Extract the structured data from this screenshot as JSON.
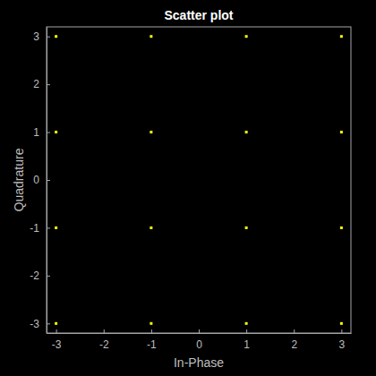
{
  "chart_data": {
    "type": "scatter",
    "title": "Scatter plot",
    "x_label": "In-Phase",
    "y_label": "Quadrature",
    "x": [
      -3,
      -1,
      1,
      3,
      -3,
      -1,
      1,
      3,
      -3,
      -1,
      1,
      3,
      -3,
      -1,
      1,
      3
    ],
    "values": [
      3,
      3,
      3,
      3,
      1,
      1,
      1,
      1,
      -1,
      -1,
      -1,
      -1,
      -3,
      -3,
      -3,
      -3
    ],
    "color": "#ffff00",
    "marker": "square",
    "xlim": [
      -3.2,
      3.2
    ],
    "ylim": [
      -3.2,
      3.2
    ],
    "xticks": [
      -3,
      -2,
      -1,
      0,
      1,
      2,
      3
    ],
    "yticks": [
      -3,
      -2,
      -1,
      0,
      1,
      2,
      3
    ],
    "grid": false
  }
}
